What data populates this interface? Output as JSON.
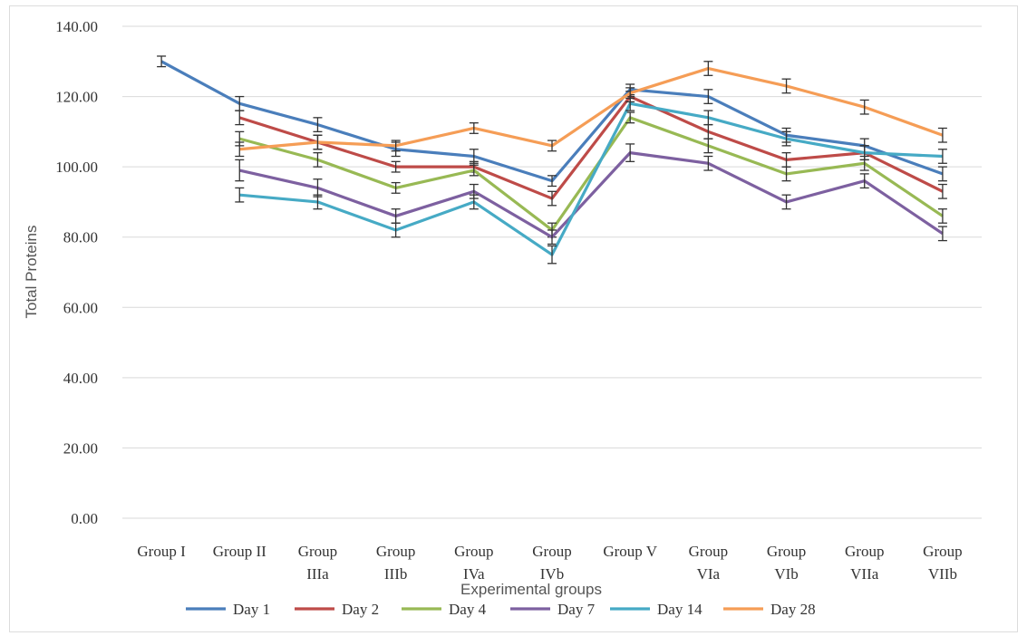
{
  "chart_data": {
    "type": "line",
    "xlabel": "Experimental groups",
    "ylabel": "Total Proteins",
    "ylim": [
      0,
      140
    ],
    "y_ticks": [
      "0.00",
      "20.00",
      "40.00",
      "60.00",
      "80.00",
      "100.00",
      "120.00",
      "140.00"
    ],
    "categories": [
      [
        "Group I"
      ],
      [
        "Group II"
      ],
      [
        "Group",
        "IIIa"
      ],
      [
        "Group",
        "IIIb"
      ],
      [
        "Group",
        "IVa"
      ],
      [
        "Group",
        "IVb"
      ],
      [
        "Group V"
      ],
      [
        "Group",
        "VIa"
      ],
      [
        "Group",
        "VIb"
      ],
      [
        "Group",
        "VIIa"
      ],
      [
        "Group",
        "VIIb"
      ]
    ],
    "grid": true,
    "error_bars": true,
    "legend_position": "bottom",
    "series": [
      {
        "name": "Day 1",
        "color": "#4a7ebb",
        "values": [
          130,
          118,
          112,
          105,
          103,
          96,
          122,
          120,
          109,
          106,
          98
        ],
        "errors": [
          1.5,
          2,
          2,
          2,
          2,
          1.5,
          1.5,
          2,
          2,
          2,
          2
        ]
      },
      {
        "name": "Day 2",
        "color": "#be4b48",
        "values": [
          null,
          114,
          107,
          100,
          100,
          91,
          120,
          110,
          102,
          104,
          93
        ],
        "errors": [
          null,
          2,
          2,
          1.5,
          1.5,
          2,
          1.5,
          2,
          2,
          2,
          2
        ]
      },
      {
        "name": "Day 4",
        "color": "#98b954",
        "values": [
          null,
          108,
          102,
          94,
          99,
          82,
          114,
          106,
          98,
          101,
          86
        ],
        "errors": [
          null,
          2,
          2,
          1.5,
          1.5,
          2,
          1.5,
          2,
          2,
          2,
          2
        ]
      },
      {
        "name": "Day 7",
        "color": "#7d60a0",
        "values": [
          null,
          99,
          94,
          86,
          93,
          80,
          104,
          101,
          90,
          96,
          81
        ],
        "errors": [
          null,
          3,
          2.5,
          2,
          2,
          2,
          2.5,
          2,
          2,
          2,
          2
        ]
      },
      {
        "name": "Day 14",
        "color": "#46aac5",
        "values": [
          null,
          92,
          90,
          82,
          90,
          75,
          118,
          114,
          108,
          104,
          103
        ],
        "errors": [
          null,
          2,
          2,
          2,
          2,
          2.5,
          2,
          2,
          2,
          2,
          2
        ]
      },
      {
        "name": "Day 28",
        "color": "#f59d56",
        "values": [
          null,
          105,
          107,
          106,
          111,
          106,
          121,
          128,
          123,
          117,
          109
        ],
        "errors": [
          null,
          2,
          2,
          1.5,
          1.5,
          1.5,
          1.5,
          2,
          2,
          2,
          2
        ]
      }
    ]
  }
}
